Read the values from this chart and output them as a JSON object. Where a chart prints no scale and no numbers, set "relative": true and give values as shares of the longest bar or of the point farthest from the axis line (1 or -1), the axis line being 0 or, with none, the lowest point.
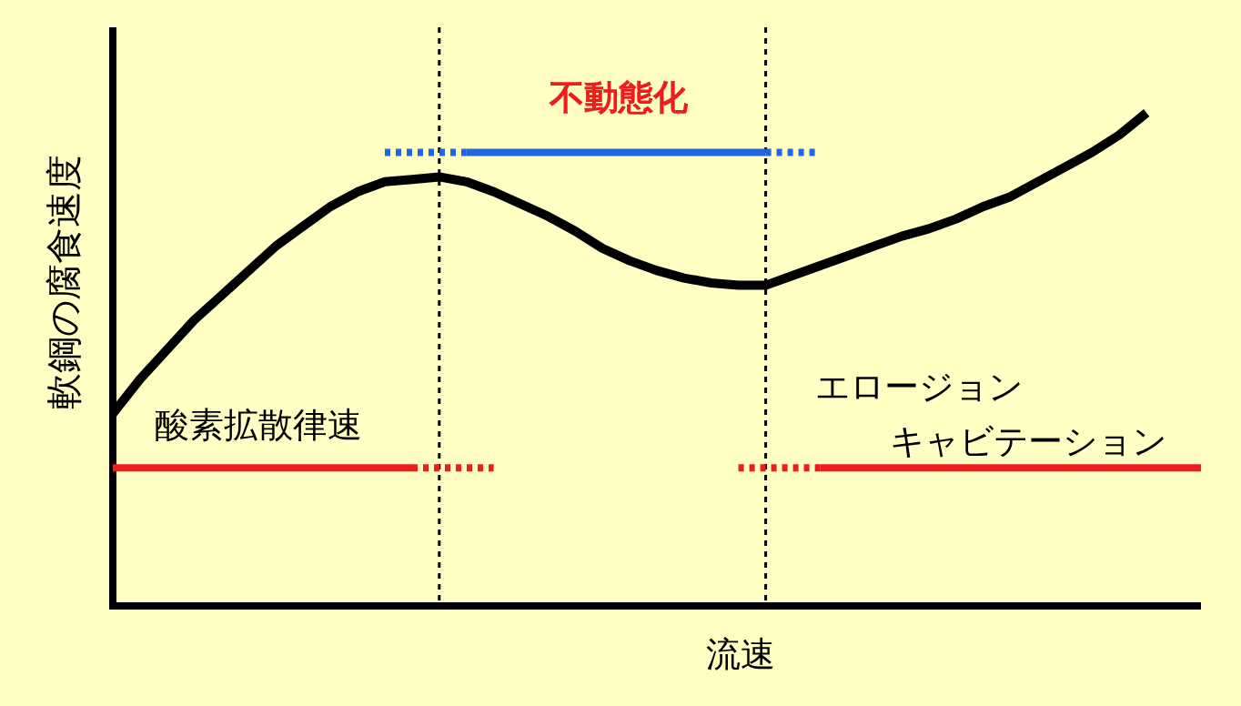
{
  "chart_data": {
    "type": "line",
    "relative": true,
    "xlabel": "流速",
    "ylabel": "軟鋼の腐食速度",
    "categories": [
      null,
      null,
      null,
      null,
      null,
      null,
      null,
      null,
      null,
      null,
      null,
      null,
      null,
      null,
      null,
      null,
      null,
      null,
      null,
      null,
      null,
      null,
      null,
      null,
      null,
      null,
      null,
      null,
      null,
      null,
      null,
      null,
      null,
      null,
      null,
      null,
      null,
      null,
      null,
      null,
      null
    ],
    "series": [
      {
        "color": "#000000",
        "line_style": "solid",
        "values": [
          0.39,
          0.46,
          0.52,
          0.58,
          0.63,
          0.68,
          0.73,
          0.77,
          0.81,
          0.84,
          0.86,
          0.865,
          0.87,
          0.86,
          0.84,
          0.815,
          0.79,
          0.76,
          0.725,
          0.7,
          0.68,
          0.665,
          0.655,
          0.65,
          0.65,
          0.67,
          0.69,
          0.71,
          0.73,
          0.75,
          0.765,
          0.785,
          0.81,
          0.83,
          0.86,
          0.89,
          0.92,
          0.955,
          1.0,
          null,
          null
        ]
      },
      {
        "color": "#ee1c1c",
        "line_style": "solid",
        "values": [
          0.28,
          0.28,
          0.28,
          0.28,
          0.28,
          0.28,
          0.28,
          0.28,
          0.28,
          0.28,
          0.28,
          0.28,
          null,
          null,
          null,
          null,
          null,
          null,
          null,
          null,
          null,
          null,
          null,
          null,
          null,
          null,
          null,
          null,
          null,
          null,
          null,
          null,
          null,
          null,
          null,
          null,
          null,
          null,
          null,
          null,
          null
        ]
      },
      {
        "color": "#ee1c1c",
        "line_style": "dotted",
        "values": [
          null,
          null,
          null,
          null,
          null,
          null,
          null,
          null,
          null,
          null,
          null,
          0.28,
          0.28,
          0.28,
          0.28,
          null,
          null,
          null,
          null,
          null,
          null,
          null,
          null,
          null,
          null,
          null,
          null,
          null,
          null,
          null,
          null,
          null,
          null,
          null,
          null,
          null,
          null,
          null,
          null,
          null,
          null
        ]
      },
      {
        "color": "#ee1c1c",
        "line_style": "dotted",
        "values": [
          null,
          null,
          null,
          null,
          null,
          null,
          null,
          null,
          null,
          null,
          null,
          null,
          null,
          null,
          null,
          null,
          null,
          null,
          null,
          null,
          null,
          null,
          null,
          0.28,
          0.28,
          0.28,
          0.28,
          null,
          null,
          null,
          null,
          null,
          null,
          null,
          null,
          null,
          null,
          null,
          null,
          null,
          null
        ]
      },
      {
        "color": "#ee1c1c",
        "line_style": "solid",
        "values": [
          null,
          null,
          null,
          null,
          null,
          null,
          null,
          null,
          null,
          null,
          null,
          null,
          null,
          null,
          null,
          null,
          null,
          null,
          null,
          null,
          null,
          null,
          null,
          null,
          null,
          null,
          0.28,
          0.28,
          0.28,
          0.28,
          0.28,
          0.28,
          0.28,
          0.28,
          0.28,
          0.28,
          0.28,
          0.28,
          0.28,
          0.28,
          0.28
        ]
      },
      {
        "color": "#2266dd",
        "line_style": "dotted",
        "values": [
          null,
          null,
          null,
          null,
          null,
          null,
          null,
          null,
          null,
          null,
          0.92,
          0.92,
          0.92,
          0.92,
          null,
          null,
          null,
          null,
          null,
          null,
          null,
          null,
          null,
          null,
          null,
          null,
          null,
          null,
          null,
          null,
          null,
          null,
          null,
          null,
          null,
          null,
          null,
          null,
          null,
          null,
          null
        ]
      },
      {
        "color": "#2266dd",
        "line_style": "solid",
        "values": [
          null,
          null,
          null,
          null,
          null,
          null,
          null,
          null,
          null,
          null,
          null,
          null,
          null,
          0.92,
          0.92,
          0.92,
          0.92,
          0.92,
          0.92,
          0.92,
          0.92,
          0.92,
          0.92,
          0.92,
          0.92,
          null,
          null,
          null,
          null,
          null,
          null,
          null,
          null,
          null,
          null,
          null,
          null,
          null,
          null,
          null,
          null
        ]
      },
      {
        "color": "#2266dd",
        "line_style": "dotted",
        "values": [
          null,
          null,
          null,
          null,
          null,
          null,
          null,
          null,
          null,
          null,
          null,
          null,
          null,
          null,
          null,
          null,
          null,
          null,
          null,
          null,
          null,
          null,
          null,
          null,
          0.92,
          0.92,
          0.92,
          null,
          null,
          null,
          null,
          null,
          null,
          null,
          null,
          null,
          null,
          null,
          null,
          null,
          null
        ]
      }
    ],
    "annotations": [
      "不動態化",
      "酸素拡散律速",
      "エロージョン",
      "キャビテーション"
    ]
  }
}
